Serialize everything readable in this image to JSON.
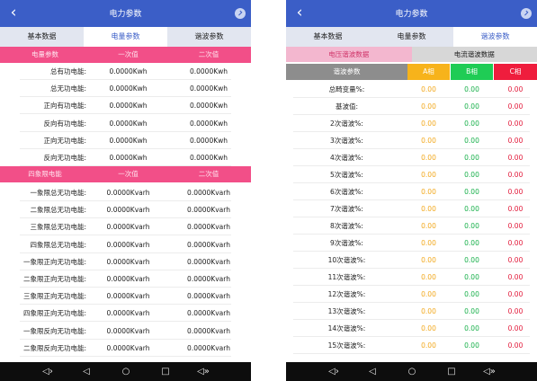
{
  "left": {
    "title": "电力参数",
    "tabs": [
      "基本数据",
      "电量参数",
      "谐波参数"
    ],
    "section1": {
      "headers": [
        "电量参数",
        "一次值",
        "二次值"
      ],
      "rows": [
        {
          "label": "总有功电能:",
          "v1": "0.0000Kwh",
          "v2": "0.0000Kwh"
        },
        {
          "label": "总无功电能:",
          "v1": "0.0000Kwh",
          "v2": "0.0000Kwh"
        },
        {
          "label": "正向有功电能:",
          "v1": "0.0000Kwh",
          "v2": "0.0000Kwh"
        },
        {
          "label": "反向有功电能:",
          "v1": "0.0000Kwh",
          "v2": "0.0000Kwh"
        },
        {
          "label": "正向无功电能:",
          "v1": "0.0000Kwh",
          "v2": "0.0000Kwh"
        },
        {
          "label": "反向无功电能:",
          "v1": "0.0000Kwh",
          "v2": "0.0000Kwh"
        }
      ]
    },
    "section2": {
      "headers": [
        "四象限电能",
        "一次值",
        "二次值"
      ],
      "rows": [
        {
          "label": "一象限总无功电能:",
          "v1": "0.0000Kvarh",
          "v2": "0.0000Kvarh"
        },
        {
          "label": "二象限总无功电能:",
          "v1": "0.0000Kvarh",
          "v2": "0.0000Kvarh"
        },
        {
          "label": "三象限总无功电能:",
          "v1": "0.0000Kvarh",
          "v2": "0.0000Kvarh"
        },
        {
          "label": "四象限总无功电能:",
          "v1": "0.0000Kvarh",
          "v2": "0.0000Kvarh"
        },
        {
          "label": "一象限正向无功电能:",
          "v1": "0.0000Kvarh",
          "v2": "0.0000Kvarh"
        },
        {
          "label": "二象限正向无功电能:",
          "v1": "0.0000Kvarh",
          "v2": "0.0000Kvarh"
        },
        {
          "label": "三象限正向无功电能:",
          "v1": "0.0000Kvarh",
          "v2": "0.0000Kvarh"
        },
        {
          "label": "四象限正向无功电能:",
          "v1": "0.0000Kvarh",
          "v2": "0.0000Kvarh"
        },
        {
          "label": "一象限反向无功电能:",
          "v1": "0.0000Kvarh",
          "v2": "0.0000Kvarh"
        },
        {
          "label": "二象限反向无功电能:",
          "v1": "0.0000Kvarh",
          "v2": "0.0000Kvarh"
        }
      ]
    }
  },
  "right": {
    "title": "电力参数",
    "tabs": [
      "基本数据",
      "电量参数",
      "谐波参数"
    ],
    "subtabs": [
      "电压谐波数据",
      "电流谐波数据"
    ],
    "headers": [
      "谐波参数",
      "A相",
      "B相",
      "C相"
    ],
    "rows": [
      {
        "label": "总畸变量%:",
        "a": "0.00",
        "b": "0.00",
        "c": "0.00"
      },
      {
        "label": "基波值:",
        "a": "0.00",
        "b": "0.00",
        "c": "0.00"
      },
      {
        "label": "2次谐波%:",
        "a": "0.00",
        "b": "0.00",
        "c": "0.00"
      },
      {
        "label": "3次谐波%:",
        "a": "0.00",
        "b": "0.00",
        "c": "0.00"
      },
      {
        "label": "4次谐波%:",
        "a": "0.00",
        "b": "0.00",
        "c": "0.00"
      },
      {
        "label": "5次谐波%:",
        "a": "0.00",
        "b": "0.00",
        "c": "0.00"
      },
      {
        "label": "6次谐波%:",
        "a": "0.00",
        "b": "0.00",
        "c": "0.00"
      },
      {
        "label": "7次谐波%:",
        "a": "0.00",
        "b": "0.00",
        "c": "0.00"
      },
      {
        "label": "8次谐波%:",
        "a": "0.00",
        "b": "0.00",
        "c": "0.00"
      },
      {
        "label": "9次谐波%:",
        "a": "0.00",
        "b": "0.00",
        "c": "0.00"
      },
      {
        "label": "10次谐波%:",
        "a": "0.00",
        "b": "0.00",
        "c": "0.00"
      },
      {
        "label": "11次谐波%:",
        "a": "0.00",
        "b": "0.00",
        "c": "0.00"
      },
      {
        "label": "12次谐波%:",
        "a": "0.00",
        "b": "0.00",
        "c": "0.00"
      },
      {
        "label": "13次谐波%:",
        "a": "0.00",
        "b": "0.00",
        "c": "0.00"
      },
      {
        "label": "14次谐波%:",
        "a": "0.00",
        "b": "0.00",
        "c": "0.00"
      },
      {
        "label": "15次谐波%:",
        "a": "0.00",
        "b": "0.00",
        "c": "0.00"
      }
    ]
  },
  "icons": {
    "back": "back-arrow-icon",
    "menu": "chevron-circle-icon",
    "nav": [
      "volume-down-icon",
      "back-triangle-icon",
      "home-circle-icon",
      "recents-square-icon",
      "volume-up-icon"
    ]
  },
  "colors": {
    "appbar": "#3b5ec7",
    "accent_pink": "#f24f88",
    "phase_a": "#f7b31b",
    "phase_b": "#1fcc55",
    "phase_c": "#ef1d3d"
  }
}
